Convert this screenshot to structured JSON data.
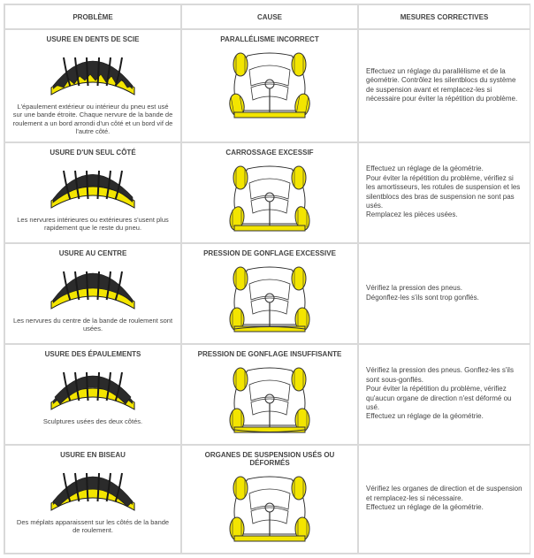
{
  "colors": {
    "accent": "#f3e500",
    "dark": "#2b2b2b",
    "darker": "#1a1a1a",
    "outline": "#333333",
    "grid": "#d9d9d9",
    "text": "#444444"
  },
  "headers": {
    "col1": "PROBLÈME",
    "col2": "CAUSE",
    "col3": "MESURES CORRECTIVES"
  },
  "rows": [
    {
      "problem_title": "USURE EN DENTS DE SCIE",
      "problem_desc": "L'épaulement extérieur ou intérieur du pneu est usé sur une bande étroite. Chaque nervure de la bande de roulement a un bord arrondi d'un côté et un bord vif de l'autre côté.",
      "cause_title": "PARALLÉLISME INCORRECT",
      "measure": "Effectuez un réglage du parallélisme et de la géométrie. Contrôlez les silentblocs du système de suspension avant et remplacez-les si nécessaire pour éviter la répétition du problème.",
      "tire_type": "saw",
      "car_type": "toe"
    },
    {
      "problem_title": "USURE D'UN SEUL CÔTÉ",
      "problem_desc": "Les nervures intérieures ou extérieures s'usent plus rapidement que le reste du pneu.",
      "cause_title": "CARROSSAGE EXCESSIF",
      "measure": "Effectuez un réglage de la géométrie.\nPour éviter la répétition du problème, vérifiez si les amortisseurs, les rotules de suspension et les silentblocs des bras de suspension ne sont pas usés.\nRemplacez les pièces usées.",
      "tire_type": "oneside",
      "car_type": "camber"
    },
    {
      "problem_title": "USURE AU CENTRE",
      "problem_desc": "Les nervures du centre de la bande de roulement sont usées.",
      "cause_title": "PRESSION DE GONFLAGE EXCESSIVE",
      "measure": "Vérifiez la pression des pneus.\nDégonflez-les s'ils sont trop gonflés.",
      "tire_type": "center",
      "car_type": "over"
    },
    {
      "problem_title": "USURE DES ÉPAULEMENTS",
      "problem_desc": "Sculptures usées des deux côtés.",
      "cause_title": "PRESSION DE GONFLAGE INSUFFISANTE",
      "measure": "Vérifiez la pression des pneus. Gonflez-les s'ils sont sous-gonflés.\nPour éviter la répétition du problème, vérifiez qu'aucun organe de direction n'est déformé ou usé.\nEffectuez un réglage de la géométrie.",
      "tire_type": "shoulder",
      "car_type": "under"
    },
    {
      "problem_title": "USURE EN BISEAU",
      "problem_desc": "Des méplats apparaissent sur les côtés de la bande de roulement.",
      "cause_title": "ORGANES DE SUSPENSION USÉS OU DÉFORMÉS",
      "measure": "Vérifiez les organes de direction et de suspension et remplacez-les si nécessaire.\nEffectuez un réglage de la géométrie.",
      "tire_type": "bevel",
      "car_type": "susp"
    }
  ]
}
